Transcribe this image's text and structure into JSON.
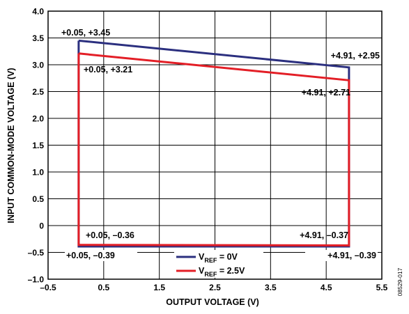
{
  "chart_data": {
    "type": "line",
    "xlabel": "OUTPUT VOLTAGE (V)",
    "ylabel": "INPUT COMMON-MODE VOLTAGE (V)",
    "xlim": [
      -0.5,
      5.5
    ],
    "ylim": [
      -1.0,
      4.0
    ],
    "x_ticks": [
      -0.5,
      0.5,
      1.5,
      2.5,
      3.5,
      4.5,
      5.5
    ],
    "x_tick_labels": [
      "–0.5",
      "0.5",
      "1.5",
      "2.5",
      "3.5",
      "4.5",
      "5.5"
    ],
    "y_ticks": [
      -1.0,
      -0.5,
      0,
      0.5,
      1.0,
      1.5,
      2.0,
      2.5,
      3.0,
      3.5,
      4.0
    ],
    "y_tick_labels": [
      "–1.0",
      "–0.5",
      "0",
      "0.5",
      "1.0",
      "1.5",
      "2.0",
      "2.5",
      "3.0",
      "3.5",
      "4.0"
    ],
    "grid": true,
    "legend_position": "bottom-center",
    "series": [
      {
        "legend_main": "V",
        "legend_sub": "REF",
        "legend_rest": " = 0V",
        "color": "#2b2f7f",
        "points": [
          {
            "x": 0.05,
            "y": 3.45
          },
          {
            "x": 4.91,
            "y": 2.95
          },
          {
            "x": 4.91,
            "y": -0.39
          },
          {
            "x": 0.05,
            "y": -0.39
          },
          {
            "x": 0.05,
            "y": 3.45
          }
        ]
      },
      {
        "legend_main": "V",
        "legend_sub": "REF",
        "legend_rest": " = 2.5V",
        "color": "#e31e26",
        "points": [
          {
            "x": 0.05,
            "y": 3.21
          },
          {
            "x": 4.91,
            "y": 2.71
          },
          {
            "x": 4.91,
            "y": -0.37
          },
          {
            "x": 0.05,
            "y": -0.36
          },
          {
            "x": 0.05,
            "y": 3.21
          }
        ]
      }
    ],
    "annotations": [
      "+0.05, +3.45",
      "+0.05, +3.21",
      "+4.91, +2.95",
      "+4.91, +2.71",
      "+0.05, –0.36",
      "+0.05, –0.39",
      "+4.91, –0.37",
      "+4.91, –0.39"
    ]
  },
  "figure_id": "08529-017"
}
